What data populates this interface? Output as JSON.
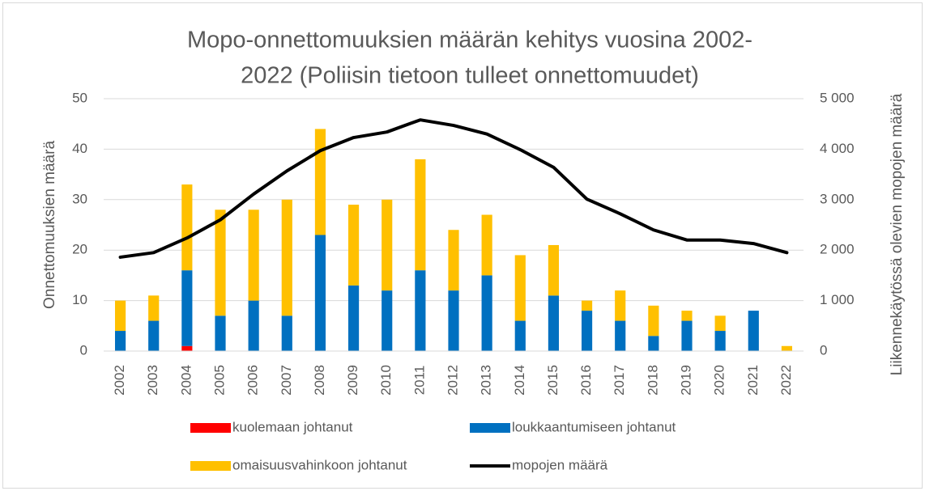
{
  "chart_data": {
    "type": "bar",
    "title": [
      "Mopo-onnettomuuksien määrän kehitys vuosina 2002-",
      "2022 (Poliisin tietoon tulleet onnettomuudet)"
    ],
    "ylabel": "Onnettomuuksien määrä",
    "y2label": "Liikennekäytössä olevien mopojen määrä",
    "categories": [
      "2002",
      "2003",
      "2004",
      "2005",
      "2006",
      "2007",
      "2008",
      "2009",
      "2010",
      "2011",
      "2012",
      "2013",
      "2014",
      "2015",
      "2016",
      "2017",
      "2018",
      "2019",
      "2020",
      "2021",
      "2022"
    ],
    "series": [
      {
        "name": "kuolemaan johtanut",
        "color": "#ff0000",
        "values": [
          0,
          0,
          1,
          0,
          0,
          0,
          0,
          0,
          0,
          0,
          0,
          0,
          0,
          0,
          0,
          0,
          0,
          0,
          0,
          0,
          0
        ]
      },
      {
        "name": "loukkaantumiseen johtanut",
        "color": "#0070c0",
        "values": [
          4,
          6,
          15,
          7,
          10,
          7,
          23,
          13,
          12,
          16,
          12,
          15,
          6,
          11,
          8,
          6,
          3,
          6,
          4,
          8,
          0
        ]
      },
      {
        "name": "omaisuusvahinkoon johtanut",
        "color": "#ffc000",
        "values": [
          6,
          5,
          17,
          21,
          18,
          23,
          21,
          16,
          18,
          22,
          12,
          12,
          13,
          10,
          2,
          6,
          6,
          2,
          3,
          0,
          1
        ]
      },
      {
        "name": "mopojen määrä",
        "color": "#000000",
        "type": "line",
        "axis": "y2",
        "values": [
          1860,
          1950,
          2240,
          2600,
          3110,
          3570,
          3970,
          4230,
          4340,
          4580,
          4470,
          4300,
          3990,
          3640,
          3010,
          2720,
          2400,
          2200,
          2200,
          2130,
          1950
        ]
      }
    ],
    "ylim": [
      0,
      50
    ],
    "yticks": [
      0,
      10,
      20,
      30,
      40,
      50
    ],
    "y2lim": [
      0,
      5000
    ],
    "y2ticks": [
      0,
      {
        "value": 1000,
        "label": "1 000"
      },
      {
        "value": 2000,
        "label": "2 000"
      },
      {
        "value": 3000,
        "label": "3 000"
      },
      {
        "value": 4000,
        "label": "4 000"
      },
      {
        "value": 5000,
        "label": "5 000"
      }
    ],
    "grid": true
  }
}
